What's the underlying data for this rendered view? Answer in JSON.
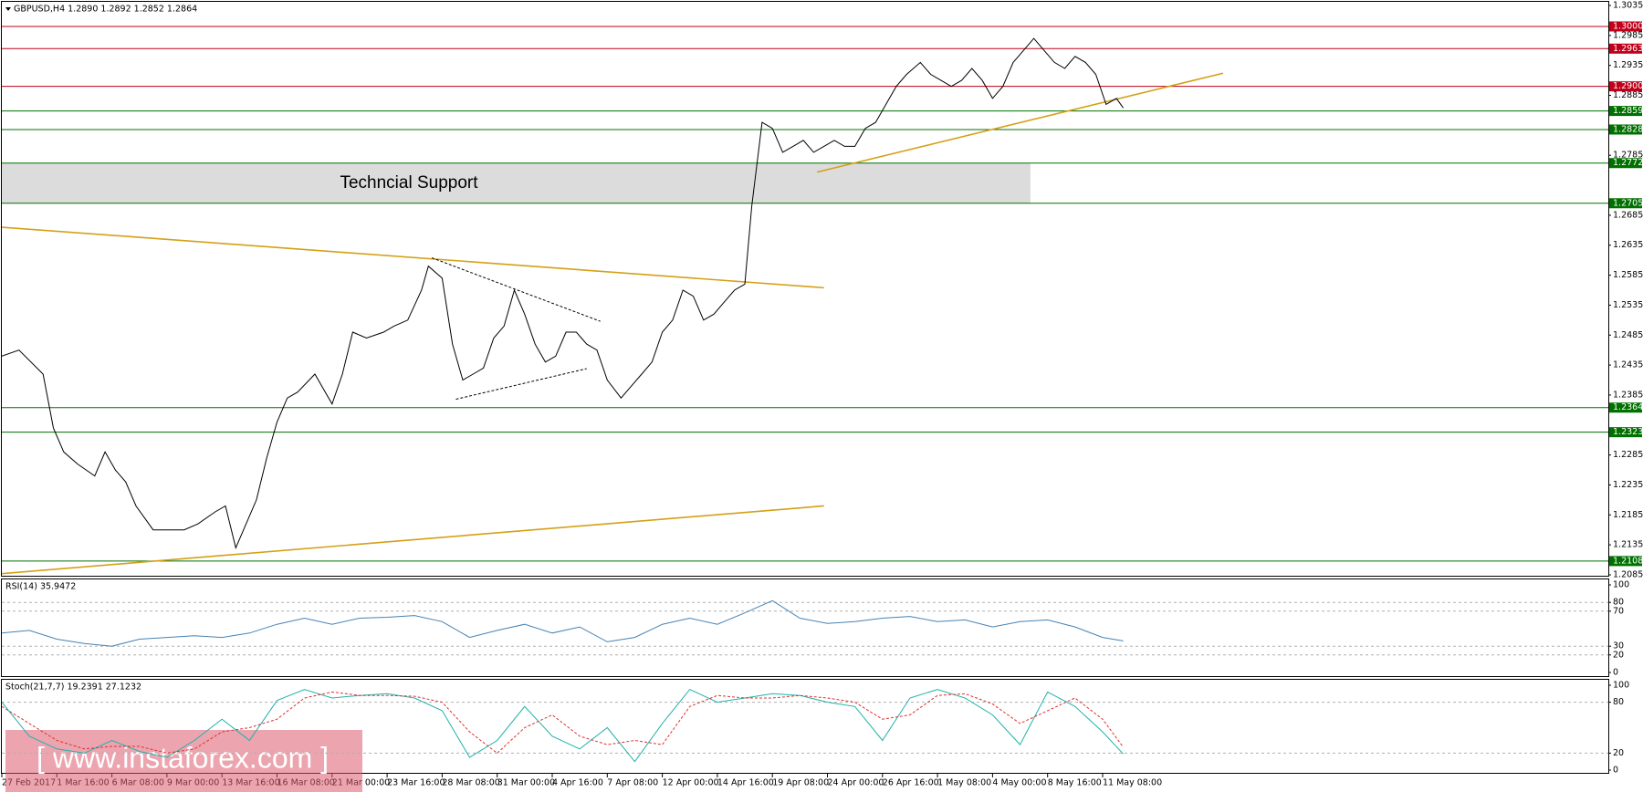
{
  "chart_data": [
    {
      "type": "line",
      "title": "GBPUSD,H4  1.2890 1.2892 1.2852 1.2864",
      "xlim": [
        0,
        467
      ],
      "ylim": [
        1.2085,
        1.3035
      ],
      "yticks": [
        1.3035,
        1.2985,
        1.2935,
        1.2885,
        1.2785,
        1.2685,
        1.2635,
        1.2585,
        1.2535,
        1.2485,
        1.2435,
        1.2385,
        1.2285,
        1.2235,
        1.2185,
        1.2135,
        1.2085
      ],
      "xticks": [
        {
          "value": 0,
          "label": "27 Feb 2017"
        },
        {
          "value": 16,
          "label": "1 Mar 16:00"
        },
        {
          "value": 32,
          "label": "6 Mar 08:00"
        },
        {
          "value": 48,
          "label": "9 Mar 00:00"
        },
        {
          "value": 64,
          "label": "13 Mar 16:00"
        },
        {
          "value": 80,
          "label": "16 Mar 08:00"
        },
        {
          "value": 96,
          "label": "21 Mar 00:00"
        },
        {
          "value": 112,
          "label": "23 Mar 16:00"
        },
        {
          "value": 128,
          "label": "28 Mar 08:00"
        },
        {
          "value": 144,
          "label": "31 Mar 00:00"
        },
        {
          "value": 160,
          "label": "4 Apr 16:00"
        },
        {
          "value": 176,
          "label": "7 Apr 08:00"
        },
        {
          "value": 192,
          "label": "12 Apr 00:00"
        },
        {
          "value": 208,
          "label": "14 Apr 16:00"
        },
        {
          "value": 224,
          "label": "19 Apr 08:00"
        },
        {
          "value": 240,
          "label": "24 Apr 00:00"
        },
        {
          "value": 256,
          "label": "26 Apr 16:00"
        },
        {
          "value": 272,
          "label": "1 May 08:00"
        },
        {
          "value": 288,
          "label": "4 May 00:00"
        },
        {
          "value": 304,
          "label": "8 May 16:00"
        },
        {
          "value": 320,
          "label": "11 May 08:00"
        }
      ],
      "x": [
        0,
        5,
        12,
        15,
        18,
        22,
        27,
        30,
        33,
        36,
        39,
        44,
        48,
        53,
        57,
        62,
        65,
        68,
        71,
        74,
        77,
        80,
        83,
        86,
        91,
        96,
        99,
        102,
        106,
        111,
        114,
        118,
        122,
        124,
        128,
        131,
        134,
        137,
        140,
        143,
        146,
        149,
        152,
        155,
        158,
        161,
        164,
        167,
        170,
        173,
        176,
        180,
        183,
        186,
        189,
        192,
        195,
        198,
        201,
        204,
        207,
        210,
        213,
        216,
        218,
        221,
        224,
        227,
        230,
        233,
        236,
        239,
        242,
        245,
        248,
        251,
        254,
        257,
        260,
        263,
        267,
        270,
        273,
        276,
        279,
        282,
        285,
        288,
        291,
        294,
        297,
        300,
        303,
        306,
        309,
        312,
        315,
        318,
        321,
        324,
        326
      ],
      "series": [
        {
          "color": "#000000",
          "values": [
            1.245,
            1.246,
            1.242,
            1.233,
            1.229,
            1.227,
            1.225,
            1.229,
            1.226,
            1.224,
            1.22,
            1.216,
            1.216,
            1.216,
            1.217,
            1.219,
            1.22,
            1.213,
            1.217,
            1.221,
            1.228,
            1.234,
            1.238,
            1.239,
            1.242,
            1.237,
            1.242,
            1.249,
            1.248,
            1.249,
            1.25,
            1.251,
            1.256,
            1.26,
            1.258,
            1.247,
            1.241,
            1.242,
            1.243,
            1.248,
            1.25,
            1.256,
            1.252,
            1.247,
            1.244,
            1.245,
            1.249,
            1.249,
            1.247,
            1.246,
            1.241,
            1.238,
            1.24,
            1.242,
            1.244,
            1.249,
            1.251,
            1.256,
            1.255,
            1.251,
            1.252,
            1.254,
            1.256,
            1.257,
            1.27,
            1.284,
            1.283,
            1.279,
            1.28,
            1.281,
            1.279,
            1.28,
            1.281,
            1.28,
            1.28,
            1.283,
            1.284,
            1.287,
            1.29,
            1.292,
            1.294,
            1.292,
            1.291,
            1.29,
            1.291,
            1.293,
            1.291,
            1.288,
            1.29,
            1.294,
            1.296,
            1.298,
            1.296,
            1.294,
            1.293,
            1.295,
            1.294,
            1.292,
            1.287,
            1.288,
            1.2864
          ]
        }
      ],
      "levels": [
        {
          "value": 1.3,
          "label": "1.3000",
          "color": "#c0001a"
        },
        {
          "value": 1.2963,
          "color": "#c0001a"
        },
        {
          "value": 1.29,
          "label": "1.2900",
          "color": "#c0001a"
        },
        {
          "value": 1.2859,
          "color": "#007000"
        },
        {
          "value": 1.2828,
          "color": "#007000"
        },
        {
          "value": 1.2772,
          "color": "#007000"
        },
        {
          "value": 1.2705,
          "color": "#007000"
        },
        {
          "value": 1.2364,
          "color": "#007000"
        },
        {
          "value": 1.2323,
          "color": "#007000"
        },
        {
          "value": 1.2108,
          "color": "#007000"
        }
      ],
      "zone": {
        "label": "Techncial Support",
        "x": [
          0,
          299
        ],
        "y": [
          1.2772,
          1.2705
        ],
        "color": "#dcdcdc"
      },
      "trendlines": [
        {
          "x": [
            0,
            239
          ],
          "y": [
            1.2665,
            1.2564
          ],
          "color": "#d4a017"
        },
        {
          "x": [
            0,
            239
          ],
          "y": [
            1.2087,
            1.22
          ],
          "color": "#d4a017"
        },
        {
          "x": [
            237,
            355
          ],
          "y": [
            1.2757,
            1.2922
          ],
          "color": "#d4a017"
        },
        {
          "x": [
            125,
            174
          ],
          "y": [
            1.2614,
            1.2508
          ],
          "color": "#000000",
          "dash": true
        },
        {
          "x": [
            132,
            170
          ],
          "y": [
            1.2378,
            1.2429
          ],
          "color": "#000000",
          "dash": true
        }
      ],
      "watermark": "[ www.instaforex.com ]"
    },
    {
      "type": "line",
      "title": "RSI(14) 35.9472",
      "xlim": [
        0,
        467
      ],
      "ylim": [
        0,
        100
      ],
      "yticks": [
        100,
        80,
        70,
        30,
        20,
        0
      ],
      "grid": "dashed",
      "x": [
        0,
        8,
        16,
        24,
        32,
        40,
        48,
        56,
        64,
        72,
        80,
        88,
        96,
        104,
        112,
        120,
        128,
        136,
        144,
        152,
        160,
        168,
        176,
        184,
        192,
        200,
        208,
        216,
        224,
        232,
        240,
        248,
        256,
        264,
        272,
        280,
        288,
        296,
        304,
        312,
        320,
        326
      ],
      "series": [
        {
          "color": "#4682b4",
          "values": [
            45,
            48,
            38,
            33,
            30,
            38,
            40,
            42,
            40,
            45,
            55,
            62,
            55,
            62,
            63,
            65,
            58,
            40,
            48,
            55,
            45,
            52,
            35,
            40,
            55,
            62,
            55,
            68,
            82,
            62,
            56,
            58,
            62,
            64,
            58,
            60,
            52,
            58,
            60,
            52,
            40,
            36
          ]
        }
      ]
    },
    {
      "type": "line",
      "title": "Stoch(21,7,7) 19.2391 27.1232",
      "xlim": [
        0,
        467
      ],
      "ylim": [
        0,
        100
      ],
      "yticks": [
        100,
        80,
        20,
        0
      ],
      "grid": "dashed",
      "x": [
        0,
        8,
        16,
        24,
        32,
        40,
        48,
        56,
        64,
        72,
        80,
        88,
        96,
        104,
        112,
        120,
        128,
        136,
        144,
        152,
        160,
        168,
        176,
        184,
        192,
        200,
        208,
        216,
        224,
        232,
        240,
        248,
        256,
        264,
        272,
        280,
        288,
        296,
        304,
        312,
        320,
        326
      ],
      "series": [
        {
          "color": "#20b2aa",
          "values": [
            80,
            40,
            25,
            20,
            35,
            22,
            15,
            35,
            60,
            35,
            82,
            95,
            85,
            88,
            90,
            85,
            70,
            15,
            35,
            75,
            40,
            25,
            50,
            10,
            55,
            95,
            80,
            85,
            90,
            88,
            80,
            75,
            35,
            85,
            95,
            85,
            65,
            30,
            92,
            75,
            45,
            19
          ]
        },
        {
          "color": "#e03030",
          "dash": true,
          "values": [
            75,
            55,
            35,
            25,
            28,
            28,
            20,
            25,
            45,
            50,
            60,
            85,
            92,
            88,
            88,
            87,
            80,
            45,
            20,
            50,
            65,
            40,
            30,
            35,
            30,
            75,
            88,
            85,
            85,
            88,
            85,
            80,
            60,
            65,
            88,
            90,
            78,
            55,
            70,
            85,
            60,
            27
          ]
        }
      ]
    }
  ]
}
